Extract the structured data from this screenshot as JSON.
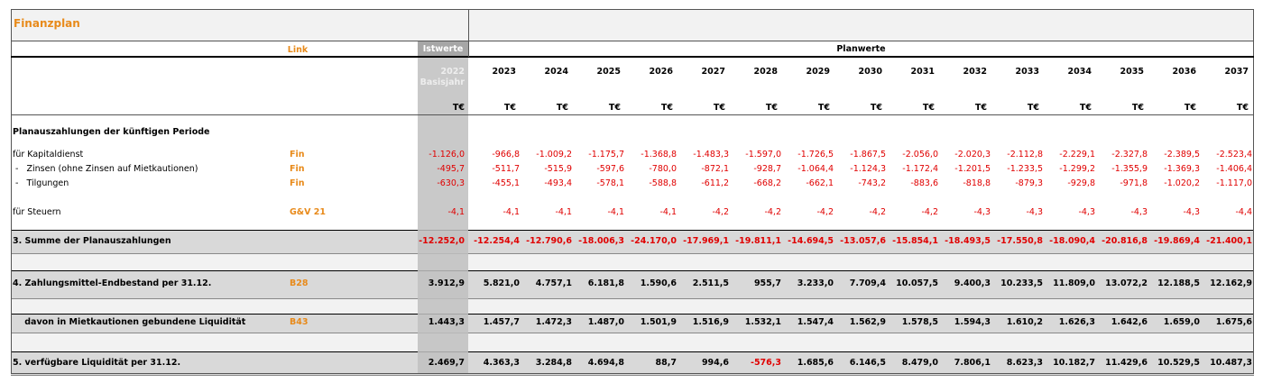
{
  "title": "Finanzplan",
  "header": {
    "link": "Link",
    "ist": "Istwerte",
    "plan": "Planwerte"
  },
  "years": [
    "2022",
    "2023",
    "2024",
    "2025",
    "2026",
    "2027",
    "2028",
    "2029",
    "2030",
    "2031",
    "2032",
    "2033",
    "2034",
    "2035",
    "2036",
    "2037"
  ],
  "base_label": "Basisjahr",
  "units": [
    "T€",
    "T€",
    "T€",
    "T€",
    "T€",
    "T€",
    "T€",
    "T€",
    "T€",
    "T€",
    "T€",
    "T€",
    "T€",
    "T€",
    "T€",
    "T€"
  ],
  "rows": [
    {
      "label": "Planauszahlungen der künftigen Periode"
    },
    {
      "label": "für Kapitaldienst",
      "link": "Fin",
      "values": [
        "-1.126,0",
        "-966,8",
        "-1.009,2",
        "-1.175,7",
        "-1.368,8",
        "-1.483,3",
        "-1.597,0",
        "-1.726,5",
        "-1.867,5",
        "-2.056,0",
        "-2.020,3",
        "-2.112,8",
        "-2.229,1",
        "-2.327,8",
        "-2.389,5",
        "-2.523,4"
      ]
    },
    {
      "label": " -   Zinsen (ohne Zinsen auf Mietkautionen)",
      "link": "Fin",
      "values": [
        "-495,7",
        "-511,7",
        "-515,9",
        "-597,6",
        "-780,0",
        "-872,1",
        "-928,7",
        "-1.064,4",
        "-1.124,3",
        "-1.172,4",
        "-1.201,5",
        "-1.233,5",
        "-1.299,2",
        "-1.355,9",
        "-1.369,3",
        "-1.406,4"
      ]
    },
    {
      "label": " -   Tilgungen",
      "link": "Fin",
      "values": [
        "-630,3",
        "-455,1",
        "-493,4",
        "-578,1",
        "-588,8",
        "-611,2",
        "-668,2",
        "-662,1",
        "-743,2",
        "-883,6",
        "-818,8",
        "-879,3",
        "-929,8",
        "-971,8",
        "-1.020,2",
        "-1.117,0"
      ]
    },
    {
      "label": "für Steuern",
      "link": "G&V 21",
      "values": [
        "-4,1",
        "-4,1",
        "-4,1",
        "-4,1",
        "-4,1",
        "-4,2",
        "-4,2",
        "-4,2",
        "-4,2",
        "-4,2",
        "-4,3",
        "-4,3",
        "-4,3",
        "-4,3",
        "-4,3",
        "-4,4"
      ]
    },
    {
      "label": "3. Summe der Planauszahlungen",
      "values": [
        "-12.252,0",
        "-12.254,4",
        "-12.790,6",
        "-18.006,3",
        "-24.170,0",
        "-17.969,1",
        "-19.811,1",
        "-14.694,5",
        "-13.057,6",
        "-15.854,1",
        "-18.493,5",
        "-17.550,8",
        "-18.090,4",
        "-20.816,8",
        "-19.869,4",
        "-21.400,1"
      ]
    },
    {
      "label": "4. Zahlungsmittel-Endbestand per 31.12.",
      "link": "B28",
      "values": [
        "3.912,9",
        "5.821,0",
        "4.757,1",
        "6.181,8",
        "1.590,6",
        "2.511,5",
        "955,7",
        "3.233,0",
        "7.709,4",
        "10.057,5",
        "9.400,3",
        "10.233,5",
        "11.809,0",
        "13.072,2",
        "12.188,5",
        "12.162,9"
      ]
    },
    {
      "label": "    davon in Mietkautionen gebundene Liquidität",
      "link": "B43",
      "values": [
        "1.443,3",
        "1.457,7",
        "1.472,3",
        "1.487,0",
        "1.501,9",
        "1.516,9",
        "1.532,1",
        "1.547,4",
        "1.562,9",
        "1.578,5",
        "1.594,3",
        "1.610,2",
        "1.626,3",
        "1.642,6",
        "1.659,0",
        "1.675,6"
      ]
    },
    {
      "label": "5. verfügbare Liquidität per 31.12.",
      "values": [
        "2.469,7",
        "4.363,3",
        "3.284,8",
        "4.694,8",
        "88,7",
        "994,6",
        "-576,3",
        "1.685,6",
        "6.146,5",
        "8.479,0",
        "7.806,1",
        "8.623,3",
        "10.182,7",
        "11.429,6",
        "10.529,5",
        "10.487,3"
      ]
    }
  ]
}
